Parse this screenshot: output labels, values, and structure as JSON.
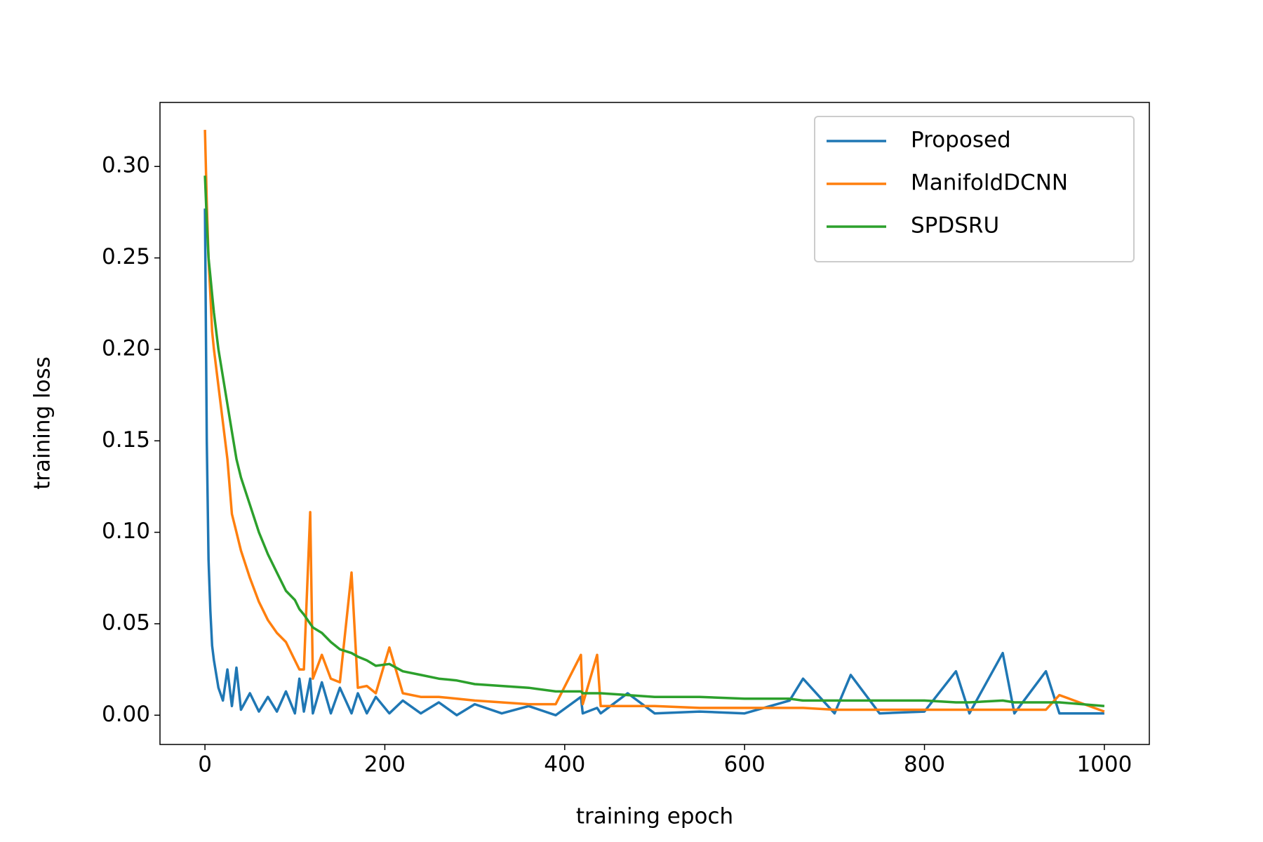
{
  "chart_data": {
    "type": "line",
    "xlabel": "training epoch",
    "ylabel": "training loss",
    "x": [
      0,
      2,
      4,
      6,
      8,
      10,
      15,
      20,
      25,
      30,
      35,
      40,
      50,
      60,
      70,
      80,
      90,
      100,
      105,
      110,
      117,
      120,
      130,
      140,
      150,
      163,
      170,
      180,
      190,
      205,
      220,
      240,
      260,
      280,
      300,
      330,
      360,
      390,
      418,
      420,
      436,
      440,
      470,
      500,
      550,
      600,
      650,
      665,
      700,
      718,
      750,
      800,
      835,
      850,
      887,
      900,
      935,
      950,
      1000
    ],
    "series": [
      {
        "name": "Proposed",
        "color": "#1f77b4",
        "values": [
          0.277,
          0.15,
          0.085,
          0.057,
          0.038,
          0.03,
          0.015,
          0.008,
          0.025,
          0.005,
          0.026,
          0.003,
          0.012,
          0.002,
          0.01,
          0.002,
          0.013,
          0.001,
          0.02,
          0.002,
          0.02,
          0.001,
          0.018,
          0.001,
          0.015,
          0.001,
          0.012,
          0.001,
          0.01,
          0.001,
          0.008,
          0.001,
          0.007,
          0.0,
          0.006,
          0.001,
          0.005,
          0.0,
          0.01,
          0.001,
          0.004,
          0.001,
          0.012,
          0.001,
          0.002,
          0.001,
          0.008,
          0.02,
          0.001,
          0.022,
          0.001,
          0.002,
          0.024,
          0.001,
          0.034,
          0.001,
          0.024,
          0.001,
          0.001
        ]
      },
      {
        "name": "ManifoldDCNN",
        "color": "#ff7f0e",
        "values": [
          0.32,
          0.28,
          0.25,
          0.23,
          0.21,
          0.2,
          0.18,
          0.16,
          0.14,
          0.11,
          0.1,
          0.09,
          0.075,
          0.062,
          0.052,
          0.045,
          0.04,
          0.03,
          0.025,
          0.025,
          0.111,
          0.02,
          0.033,
          0.02,
          0.018,
          0.078,
          0.015,
          0.016,
          0.012,
          0.037,
          0.012,
          0.01,
          0.01,
          0.009,
          0.008,
          0.007,
          0.006,
          0.006,
          0.033,
          0.006,
          0.033,
          0.005,
          0.005,
          0.005,
          0.004,
          0.004,
          0.004,
          0.004,
          0.003,
          0.003,
          0.003,
          0.003,
          0.003,
          0.003,
          0.003,
          0.003,
          0.003,
          0.011,
          0.002
        ]
      },
      {
        "name": "SPDSRU",
        "color": "#2ca02c",
        "values": [
          0.295,
          0.27,
          0.25,
          0.24,
          0.23,
          0.22,
          0.2,
          0.185,
          0.17,
          0.155,
          0.14,
          0.13,
          0.115,
          0.1,
          0.088,
          0.078,
          0.068,
          0.063,
          0.058,
          0.055,
          0.05,
          0.048,
          0.045,
          0.04,
          0.036,
          0.034,
          0.032,
          0.03,
          0.027,
          0.028,
          0.024,
          0.022,
          0.02,
          0.019,
          0.017,
          0.016,
          0.015,
          0.013,
          0.013,
          0.012,
          0.012,
          0.012,
          0.011,
          0.01,
          0.01,
          0.009,
          0.009,
          0.008,
          0.008,
          0.008,
          0.008,
          0.008,
          0.007,
          0.007,
          0.008,
          0.007,
          0.007,
          0.007,
          0.005
        ]
      }
    ],
    "xlim": [
      -50,
      1050
    ],
    "xticks": [
      0,
      200,
      400,
      600,
      800,
      1000
    ],
    "ylim": [
      -0.016,
      0.335
    ],
    "yticks": [
      {
        "value": 0,
        "label": "0.00"
      },
      0.05,
      {
        "value": 0.1,
        "label": "0.10"
      },
      0.15,
      {
        "value": 0.2,
        "label": "0.20"
      },
      0.25,
      {
        "value": 0.3,
        "label": "0.30"
      }
    ],
    "legend": "upper right"
  }
}
